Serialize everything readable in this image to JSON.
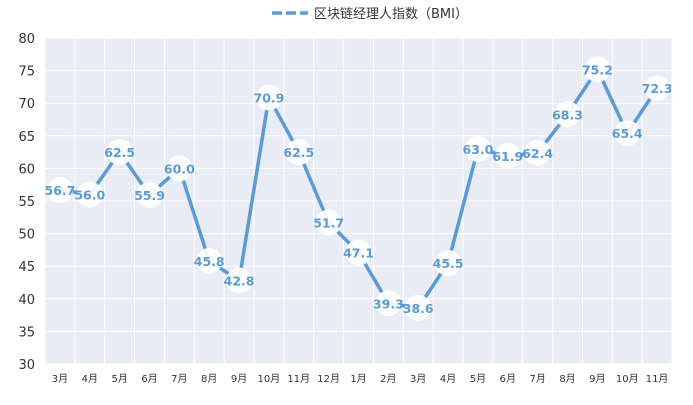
{
  "chart_data": {
    "type": "line",
    "title": "",
    "xlabel": "",
    "ylabel": "",
    "ylim": [
      30,
      80
    ],
    "yticks": [
      30,
      35,
      40,
      45,
      50,
      55,
      60,
      65,
      70,
      75,
      80
    ],
    "grid": true,
    "legend_position": "top-center",
    "categories": [
      "3月",
      "4月",
      "5月",
      "6月",
      "7月",
      "8月",
      "9月",
      "10月",
      "11月",
      "12月",
      "1月",
      "2月",
      "3月",
      "4月",
      "5月",
      "6月",
      "7月",
      "8月",
      "9月",
      "10月",
      "11月"
    ],
    "series": [
      {
        "name": "区块链经理人指数（BMI）",
        "color": "#5B9BD5",
        "values": [
          56.7,
          56.0,
          62.5,
          55.9,
          60.0,
          45.8,
          42.8,
          70.9,
          62.5,
          51.7,
          47.1,
          39.3,
          38.6,
          45.5,
          63.0,
          61.9,
          62.4,
          68.3,
          75.2,
          65.4,
          72.3
        ]
      }
    ],
    "plot_background": "#E9EBF5",
    "grid_color": "#ffffff"
  }
}
